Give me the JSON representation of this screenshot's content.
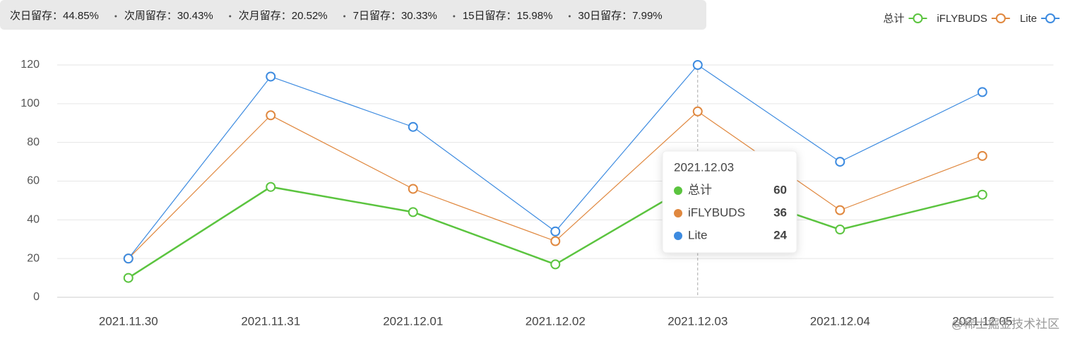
{
  "stats": [
    "次日留存：44.85%",
    "次周留存：30.43%",
    "次月留存：20.52%",
    "7日留存：30.33%",
    "15日留存：15.98%",
    "30日留存：7.99%"
  ],
  "watermark": "@稀土掘金技术社区",
  "chart_data": {
    "type": "line",
    "stacked": true,
    "categories": [
      "2021.11.30",
      "2021.11.31",
      "2021.12.01",
      "2021.12.02",
      "2021.12.03",
      "2021.12.04",
      "2021.12.05"
    ],
    "series": [
      {
        "name": "总计",
        "color": "#5bc43f",
        "values": [
          10,
          57,
          44,
          17,
          60,
          35,
          53
        ]
      },
      {
        "name": "iFLYBUDS",
        "color": "#e0883f",
        "values": [
          10,
          37,
          12,
          12,
          36,
          10,
          20
        ]
      },
      {
        "name": "Lite",
        "color": "#3d8be0",
        "values": [
          0,
          20,
          32,
          5,
          24,
          25,
          33
        ]
      }
    ],
    "ylim": [
      0,
      120
    ],
    "yticks": [
      0,
      20,
      40,
      60,
      80,
      100,
      120
    ],
    "grid": true,
    "legend": "top-right",
    "tooltip_index": 4
  }
}
